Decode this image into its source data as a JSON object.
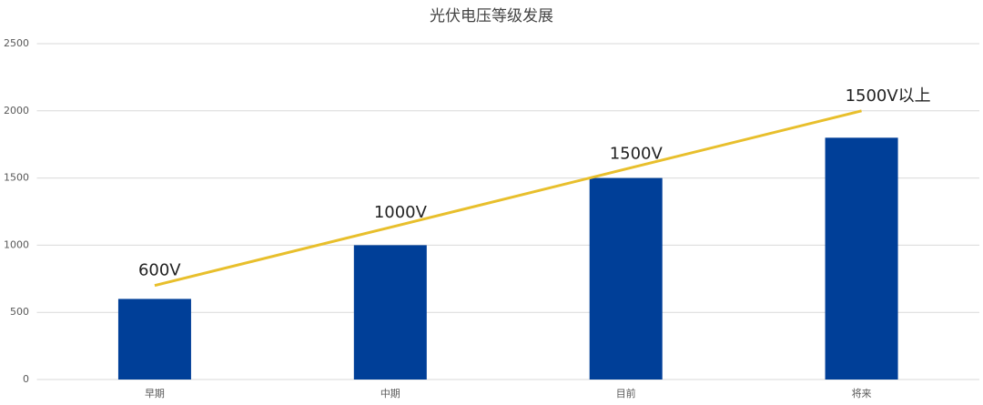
{
  "chart_data": {
    "type": "bar",
    "title": "光伏电压等级发展",
    "categories": [
      "早期",
      "中期",
      "目前",
      "将来"
    ],
    "series": [
      {
        "type": "bar",
        "color": "#003f98",
        "values": [
          600,
          1000,
          1500,
          1800
        ]
      },
      {
        "type": "line",
        "color": "#e8bf2c",
        "values": [
          700,
          1133,
          1567,
          2000
        ]
      }
    ],
    "annotations": [
      "600V",
      "1000V",
      "1500V",
      "1500V以上"
    ],
    "ylim": [
      0,
      2500
    ],
    "yticks": [
      0,
      500,
      1000,
      1500,
      2000,
      2500
    ],
    "grid": true
  }
}
